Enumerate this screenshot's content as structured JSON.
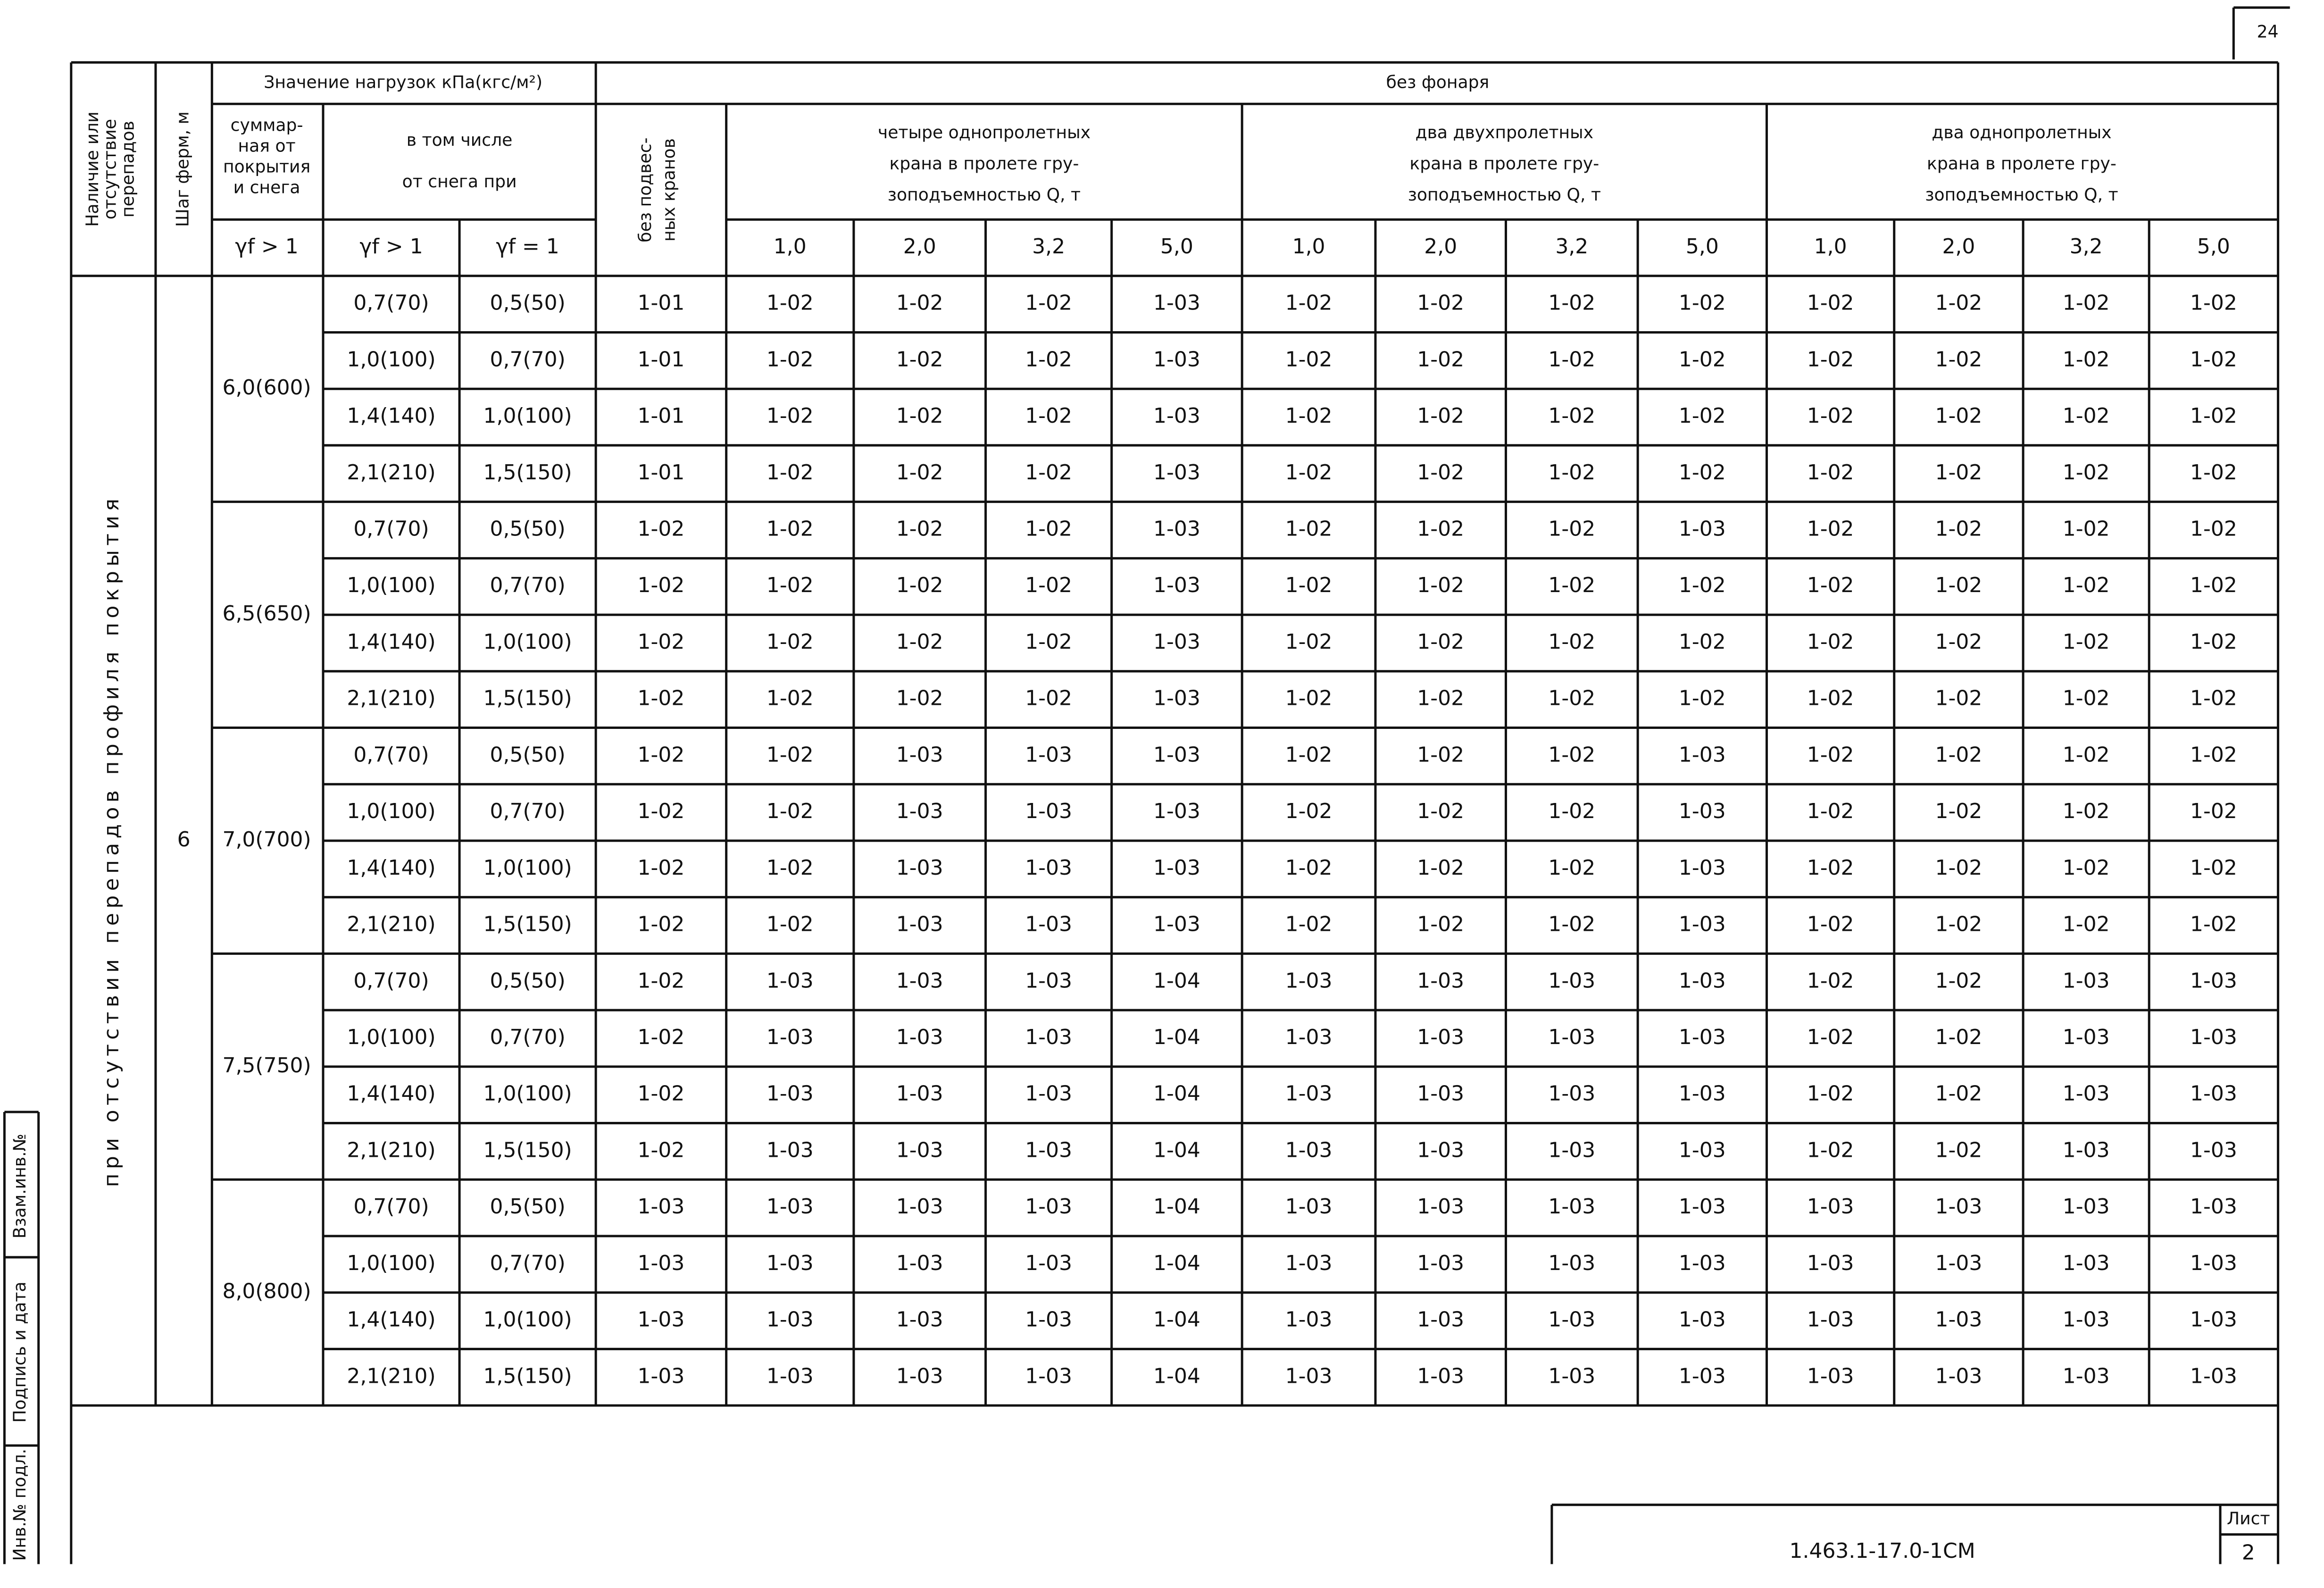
{
  "corner_number": "24",
  "side_stamp": [
    "Инв.№ подл.",
    "Подпись и дата",
    "Взам.инв.№"
  ],
  "header": {
    "presence": [
      "Наличие или",
      "отсутствие",
      "перепадов"
    ],
    "step": "Шаг ферм, м",
    "loads": "Значение нагрузок кПа(кгс/м²)",
    "lantern": "без фонаря",
    "total": [
      "суммар-",
      "ная от",
      "покрытия",
      "и снега"
    ],
    "snow": [
      "в том числе",
      "от снега при"
    ],
    "gamma": [
      "γf > 1",
      "γf > 1",
      "γf = 1"
    ],
    "no_cranes": [
      "без подвес-",
      "ных кранов"
    ],
    "crane_groups": [
      [
        "четыре однопролетных",
        "крана в пролете гру-",
        "зоподъемностью Q, т"
      ],
      [
        "два двухпролетных",
        "крана в пролете гру-",
        "зоподъемностью Q, т"
      ],
      [
        "два однопролетных",
        "крана в пролете гру-",
        "зоподъемностью Q, т"
      ]
    ],
    "capacities": [
      "1,0",
      "2,0",
      "3,2",
      "5,0",
      "1,0",
      "2,0",
      "3,2",
      "5,0",
      "1,0",
      "2,0",
      "3,2",
      "5,0"
    ]
  },
  "table": {
    "condition": "при отсутствии перепадов профиля покрытия",
    "step_value": "6",
    "groups": [
      {
        "total": "6,0(600)",
        "rows": [
          [
            "0,7(70)",
            "0,5(50)",
            "1-01",
            "1-02",
            "1-02",
            "1-02",
            "1-03",
            "1-02",
            "1-02",
            "1-02",
            "1-02",
            "1-02",
            "1-02",
            "1-02",
            "1-02"
          ],
          [
            "1,0(100)",
            "0,7(70)",
            "1-01",
            "1-02",
            "1-02",
            "1-02",
            "1-03",
            "1-02",
            "1-02",
            "1-02",
            "1-02",
            "1-02",
            "1-02",
            "1-02",
            "1-02"
          ],
          [
            "1,4(140)",
            "1,0(100)",
            "1-01",
            "1-02",
            "1-02",
            "1-02",
            "1-03",
            "1-02",
            "1-02",
            "1-02",
            "1-02",
            "1-02",
            "1-02",
            "1-02",
            "1-02"
          ],
          [
            "2,1(210)",
            "1,5(150)",
            "1-01",
            "1-02",
            "1-02",
            "1-02",
            "1-03",
            "1-02",
            "1-02",
            "1-02",
            "1-02",
            "1-02",
            "1-02",
            "1-02",
            "1-02"
          ]
        ]
      },
      {
        "total": "6,5(650)",
        "rows": [
          [
            "0,7(70)",
            "0,5(50)",
            "1-02",
            "1-02",
            "1-02",
            "1-02",
            "1-03",
            "1-02",
            "1-02",
            "1-02",
            "1-03",
            "1-02",
            "1-02",
            "1-02",
            "1-02"
          ],
          [
            "1,0(100)",
            "0,7(70)",
            "1-02",
            "1-02",
            "1-02",
            "1-02",
            "1-03",
            "1-02",
            "1-02",
            "1-02",
            "1-02",
            "1-02",
            "1-02",
            "1-02",
            "1-02"
          ],
          [
            "1,4(140)",
            "1,0(100)",
            "1-02",
            "1-02",
            "1-02",
            "1-02",
            "1-03",
            "1-02",
            "1-02",
            "1-02",
            "1-02",
            "1-02",
            "1-02",
            "1-02",
            "1-02"
          ],
          [
            "2,1(210)",
            "1,5(150)",
            "1-02",
            "1-02",
            "1-02",
            "1-02",
            "1-03",
            "1-02",
            "1-02",
            "1-02",
            "1-02",
            "1-02",
            "1-02",
            "1-02",
            "1-02"
          ]
        ]
      },
      {
        "total": "7,0(700)",
        "rows": [
          [
            "0,7(70)",
            "0,5(50)",
            "1-02",
            "1-02",
            "1-03",
            "1-03",
            "1-03",
            "1-02",
            "1-02",
            "1-02",
            "1-03",
            "1-02",
            "1-02",
            "1-02",
            "1-02"
          ],
          [
            "1,0(100)",
            "0,7(70)",
            "1-02",
            "1-02",
            "1-03",
            "1-03",
            "1-03",
            "1-02",
            "1-02",
            "1-02",
            "1-03",
            "1-02",
            "1-02",
            "1-02",
            "1-02"
          ],
          [
            "1,4(140)",
            "1,0(100)",
            "1-02",
            "1-02",
            "1-03",
            "1-03",
            "1-03",
            "1-02",
            "1-02",
            "1-02",
            "1-03",
            "1-02",
            "1-02",
            "1-02",
            "1-02"
          ],
          [
            "2,1(210)",
            "1,5(150)",
            "1-02",
            "1-02",
            "1-03",
            "1-03",
            "1-03",
            "1-02",
            "1-02",
            "1-02",
            "1-03",
            "1-02",
            "1-02",
            "1-02",
            "1-02"
          ]
        ]
      },
      {
        "total": "7,5(750)",
        "rows": [
          [
            "0,7(70)",
            "0,5(50)",
            "1-02",
            "1-03",
            "1-03",
            "1-03",
            "1-04",
            "1-03",
            "1-03",
            "1-03",
            "1-03",
            "1-02",
            "1-02",
            "1-03",
            "1-03"
          ],
          [
            "1,0(100)",
            "0,7(70)",
            "1-02",
            "1-03",
            "1-03",
            "1-03",
            "1-04",
            "1-03",
            "1-03",
            "1-03",
            "1-03",
            "1-02",
            "1-02",
            "1-03",
            "1-03"
          ],
          [
            "1,4(140)",
            "1,0(100)",
            "1-02",
            "1-03",
            "1-03",
            "1-03",
            "1-04",
            "1-03",
            "1-03",
            "1-03",
            "1-03",
            "1-02",
            "1-02",
            "1-03",
            "1-03"
          ],
          [
            "2,1(210)",
            "1,5(150)",
            "1-02",
            "1-03",
            "1-03",
            "1-03",
            "1-04",
            "1-03",
            "1-03",
            "1-03",
            "1-03",
            "1-02",
            "1-02",
            "1-03",
            "1-03"
          ]
        ]
      },
      {
        "total": "8,0(800)",
        "rows": [
          [
            "0,7(70)",
            "0,5(50)",
            "1-03",
            "1-03",
            "1-03",
            "1-03",
            "1-04",
            "1-03",
            "1-03",
            "1-03",
            "1-03",
            "1-03",
            "1-03",
            "1-03",
            "1-03"
          ],
          [
            "1,0(100)",
            "0,7(70)",
            "1-03",
            "1-03",
            "1-03",
            "1-03",
            "1-04",
            "1-03",
            "1-03",
            "1-03",
            "1-03",
            "1-03",
            "1-03",
            "1-03",
            "1-03"
          ],
          [
            "1,4(140)",
            "1,0(100)",
            "1-03",
            "1-03",
            "1-03",
            "1-03",
            "1-04",
            "1-03",
            "1-03",
            "1-03",
            "1-03",
            "1-03",
            "1-03",
            "1-03",
            "1-03"
          ],
          [
            "2,1(210)",
            "1,5(150)",
            "1-03",
            "1-03",
            "1-03",
            "1-03",
            "1-04",
            "1-03",
            "1-03",
            "1-03",
            "1-03",
            "1-03",
            "1-03",
            "1-03",
            "1-03"
          ]
        ]
      }
    ]
  },
  "title_block": {
    "code": "1.463.1-17.0-1СМ",
    "sheet_label": "Лист",
    "sheet": "2"
  }
}
